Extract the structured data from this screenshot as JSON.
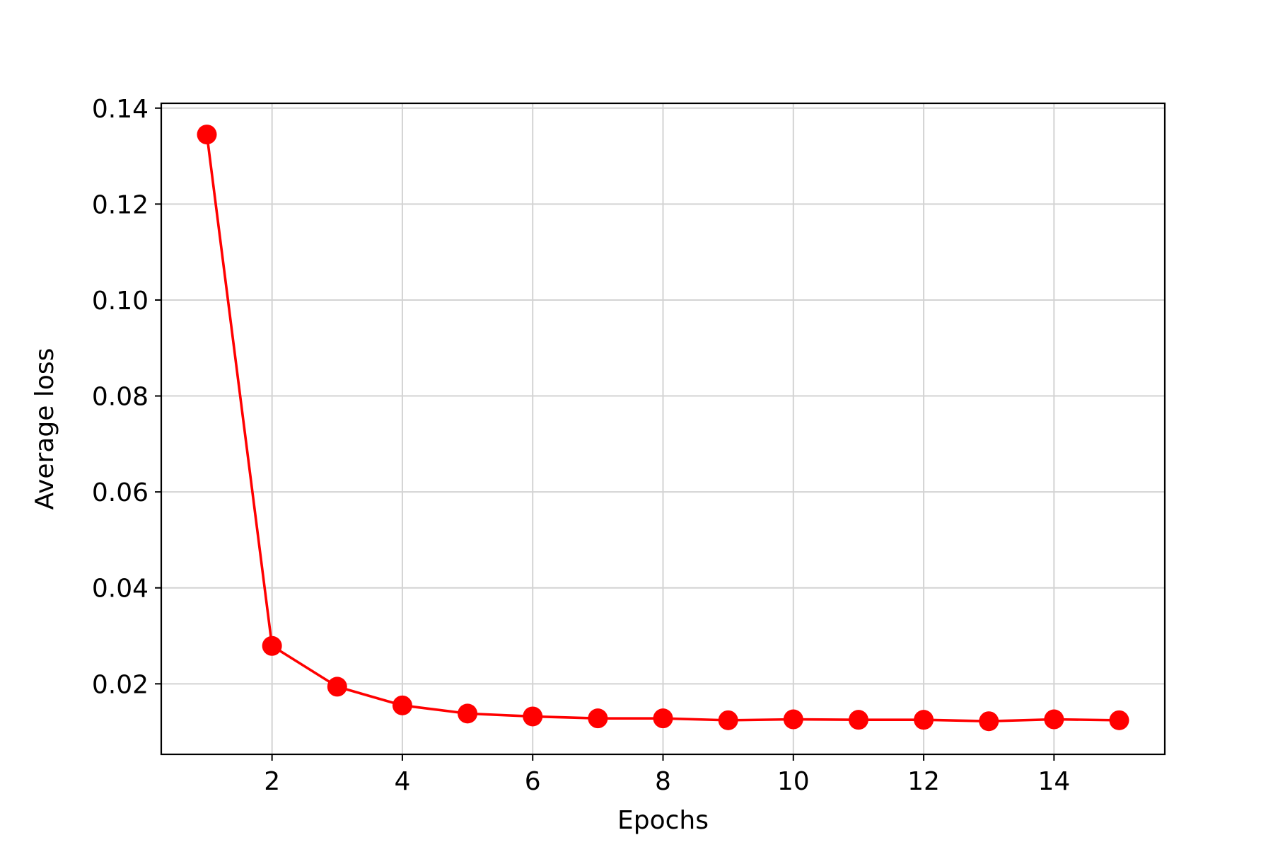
{
  "chart_data": {
    "type": "line",
    "title": "",
    "xlabel": "Epochs",
    "ylabel": "Average loss",
    "xlim": [
      0.3,
      15.7
    ],
    "ylim": [
      0.0053,
      0.141
    ],
    "xticks": [
      2,
      4,
      6,
      8,
      10,
      12,
      14
    ],
    "yticks": [
      0.02,
      0.04,
      0.06,
      0.08,
      0.1,
      0.12,
      0.14
    ],
    "xtick_labels": [
      "2",
      "4",
      "6",
      "8",
      "10",
      "12",
      "14"
    ],
    "ytick_labels": [
      "0.02",
      "0.04",
      "0.06",
      "0.08",
      "0.10",
      "0.12",
      "0.14"
    ],
    "grid": true,
    "legend": "none",
    "series": [
      {
        "color": "#ff0000",
        "marker": "circle",
        "x": [
          1,
          2,
          3,
          4,
          5,
          6,
          7,
          8,
          9,
          10,
          11,
          12,
          13,
          14,
          15
        ],
        "y": [
          0.1345,
          0.0279,
          0.0194,
          0.0155,
          0.0138,
          0.0132,
          0.0128,
          0.0128,
          0.0124,
          0.0126,
          0.0125,
          0.0125,
          0.0122,
          0.0126,
          0.0124
        ]
      }
    ],
    "colors": {
      "grid": "#d3d3d3",
      "axes": "#000000",
      "background": "#ffffff"
    }
  }
}
